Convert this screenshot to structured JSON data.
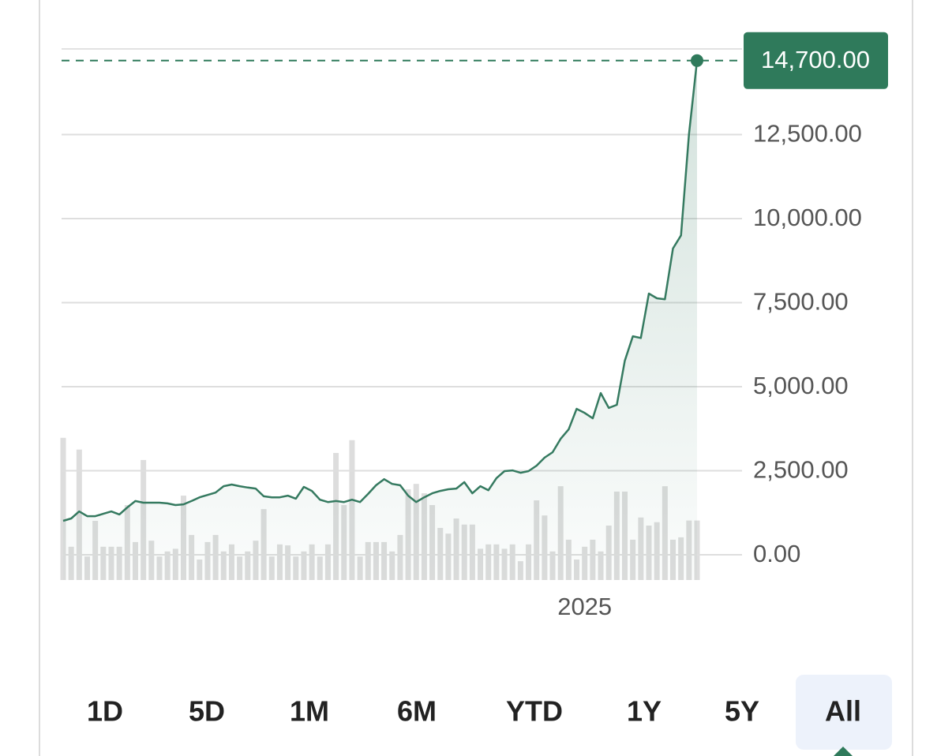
{
  "chart_data": {
    "type": "line",
    "categories": [
      null,
      null,
      null,
      null,
      null,
      null,
      null,
      null,
      null,
      null,
      null,
      null,
      null,
      null,
      null,
      null,
      null,
      null,
      null,
      null,
      null,
      null,
      null,
      null,
      null,
      null,
      null,
      null,
      null,
      null,
      null,
      null,
      null,
      null,
      null,
      null,
      null,
      null,
      null,
      null,
      null,
      null,
      null,
      null,
      null,
      null,
      null,
      null,
      null,
      null,
      null,
      null,
      null,
      null,
      null,
      null,
      null,
      null,
      null,
      null,
      null,
      null,
      null,
      null,
      null,
      "2025",
      null,
      null,
      null,
      null,
      null,
      null,
      null,
      null,
      null,
      null,
      null,
      null,
      null,
      null
    ],
    "series": [
      {
        "color": "#357a60",
        "values": [
          1010,
          1080,
          1290,
          1150,
          1150,
          1220,
          1290,
          1200,
          1410,
          1600,
          1550,
          1550,
          1550,
          1530,
          1480,
          1500,
          1600,
          1710,
          1780,
          1850,
          2040,
          2090,
          2040,
          2000,
          1970,
          1740,
          1710,
          1710,
          1760,
          1670,
          2020,
          1900,
          1640,
          1570,
          1600,
          1570,
          1640,
          1570,
          1810,
          2070,
          2250,
          2110,
          2070,
          1760,
          1570,
          1710,
          1830,
          1900,
          1950,
          1970,
          2160,
          1830,
          2040,
          1920,
          2280,
          2490,
          2510,
          2440,
          2490,
          2650,
          2890,
          3050,
          3450,
          3730,
          4340,
          4220,
          4060,
          4810,
          4370,
          4460,
          5770,
          6500,
          6450,
          7770,
          7630,
          7600,
          9110,
          9500,
          12510,
          14700
        ]
      }
    ],
    "volume": {
      "color": "#dddddd",
      "values": [
        4230,
        990,
        3880,
        700,
        1760,
        990,
        990,
        990,
        2230,
        1130,
        3570,
        1170,
        700,
        850,
        930,
        2510,
        1340,
        610,
        1130,
        1340,
        850,
        1060,
        700,
        850,
        1170,
        2110,
        700,
        1060,
        1030,
        700,
        850,
        1060,
        700,
        1060,
        3780,
        2230,
        4160,
        700,
        1130,
        1130,
        1130,
        850,
        1340,
        2700,
        2860,
        2580,
        2230,
        1550,
        1380,
        1830,
        1650,
        1650,
        930,
        1060,
        1060,
        930,
        1060,
        560,
        1060,
        2370,
        1920,
        850,
        2790,
        1200,
        610,
        990,
        1200,
        850,
        1620,
        2630,
        2630,
        1200,
        1860,
        1620,
        1720,
        2790,
        1200,
        1270,
        1770,
        1770
      ]
    },
    "ylim": [
      -750,
      15000
    ],
    "yticks": [
      {
        "value": 0,
        "label": "0.00"
      },
      {
        "value": 2500,
        "label": "2,500.00"
      },
      {
        "value": 5000,
        "label": "5,000.00"
      },
      {
        "value": 7500,
        "label": "7,500.00"
      },
      {
        "value": 10000,
        "label": "10,000.00"
      },
      {
        "value": 12500,
        "label": "12,500.00"
      }
    ],
    "last_price": {
      "value": 14700,
      "label": "14,700.00",
      "color": "#2f7a5b"
    },
    "grid": true
  },
  "range_buttons": {
    "options": [
      "1D",
      "5D",
      "1M",
      "6M",
      "YTD",
      "1Y",
      "5Y",
      "All"
    ],
    "selected": "All"
  }
}
